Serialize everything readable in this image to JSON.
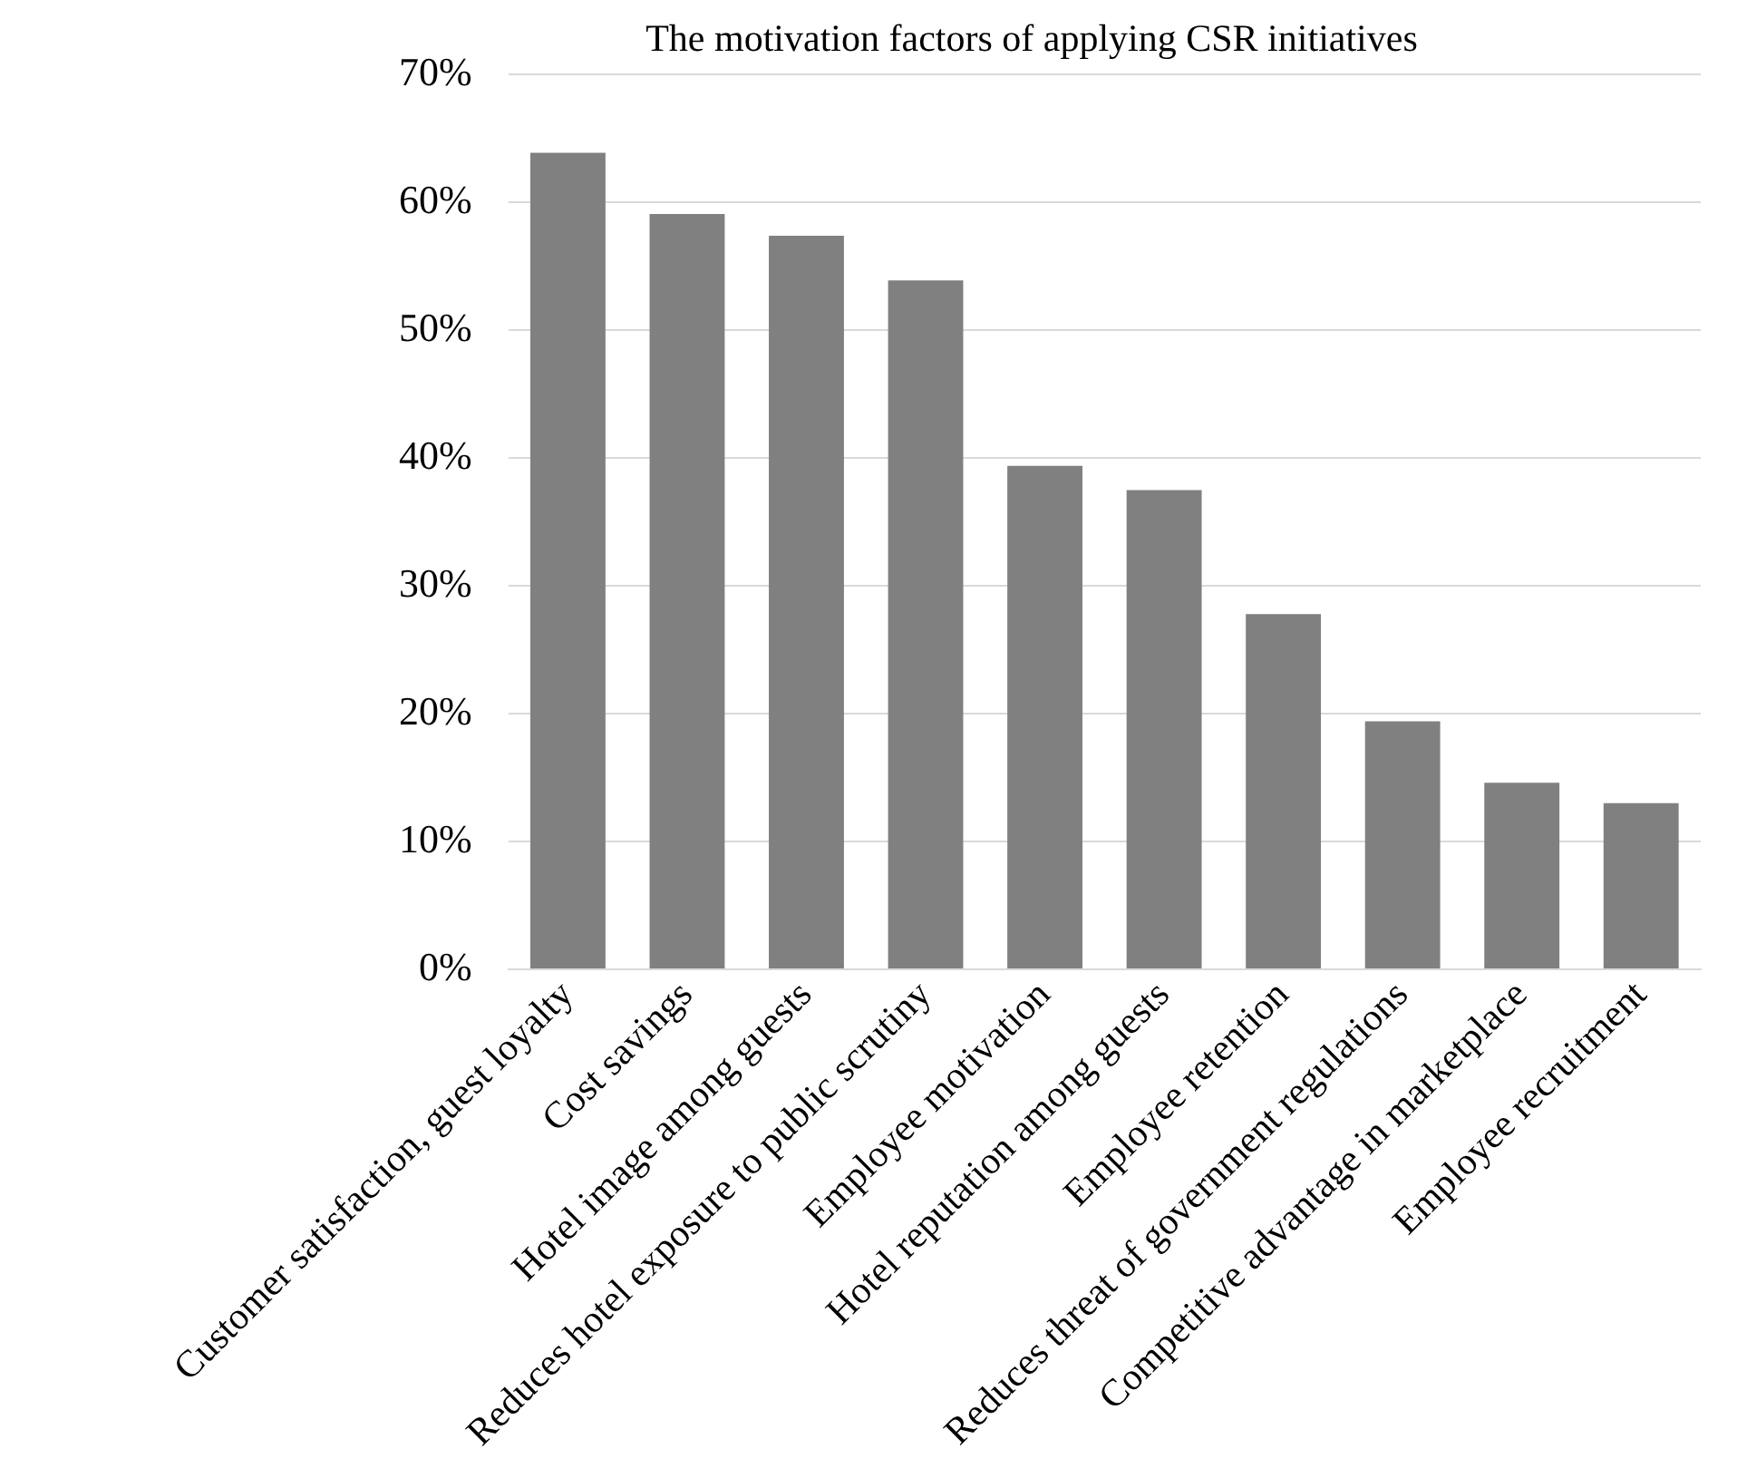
{
  "chart_data": {
    "type": "bar",
    "title": "The motivation factors of applying CSR initiatives",
    "categories": [
      "Customer satisfaction, guest loyalty",
      "Cost savings",
      "Hotel image among guests",
      "Reduces hotel exposure to public scrutiny",
      "Employee motivation",
      "Hotel reputation among guests",
      "Employee retention",
      "Reduces threat of government regulations",
      "Competitive advantage in marketplace",
      "Employee recruitment"
    ],
    "values": [
      63.9,
      59.1,
      57.4,
      53.9,
      39.4,
      37.5,
      27.8,
      19.4,
      14.6,
      13.0
    ],
    "color": "#808080",
    "ylim": [
      0,
      70
    ],
    "yticks": [
      {
        "value": 0,
        "label": "0%"
      },
      {
        "value": 10,
        "label": "10%"
      },
      {
        "value": 20,
        "label": "20%"
      },
      {
        "value": 30,
        "label": "30%"
      },
      {
        "value": 40,
        "label": "40%"
      },
      {
        "value": 50,
        "label": "50%"
      },
      {
        "value": 60,
        "label": "60%"
      },
      {
        "value": 70,
        "label": "70%"
      }
    ],
    "grid": "y",
    "legend": false
  }
}
